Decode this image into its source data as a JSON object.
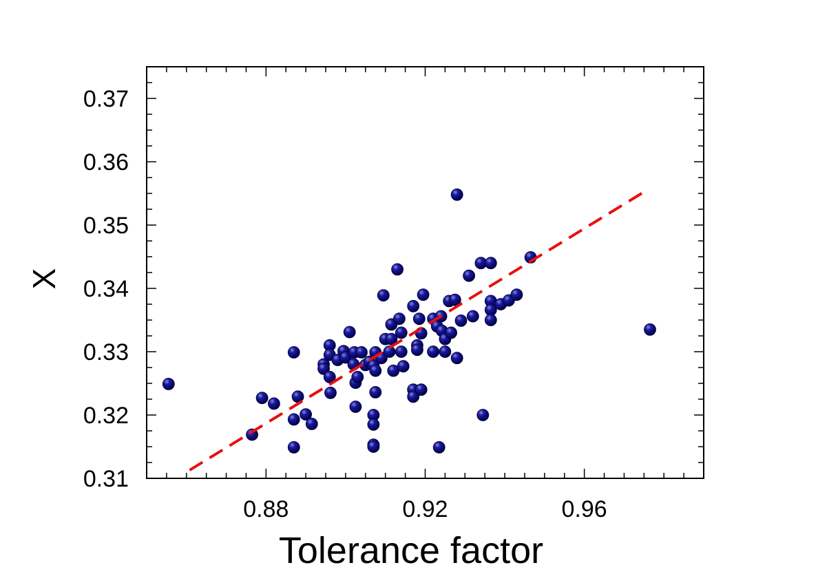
{
  "chart_data": {
    "type": "scatter",
    "xlabel": "Tolerance factor",
    "ylabel": "X",
    "xlim": [
      0.85,
      0.99
    ],
    "ylim": [
      0.31,
      0.375
    ],
    "x_ticks": [
      0.88,
      0.92,
      0.96
    ],
    "x_tick_labels": [
      "0.88",
      "0.92",
      "0.96"
    ],
    "y_ticks": [
      0.31,
      0.32,
      0.33,
      0.34,
      0.35,
      0.36,
      0.37
    ],
    "y_tick_labels": [
      "0.31",
      "0.32",
      "0.33",
      "0.34",
      "0.35",
      "0.36",
      "0.37"
    ],
    "grid": false,
    "marker_color": "#0a0a7a",
    "fit_color": "#e81010",
    "fit_line": {
      "x": [
        0.8608,
        0.9757
      ],
      "y": [
        0.3113,
        0.3555
      ]
    },
    "series": [
      {
        "points": [
          [
            0.8555,
            0.3249
          ],
          [
            0.8765,
            0.3169
          ],
          [
            0.879,
            0.3227
          ],
          [
            0.882,
            0.3218
          ],
          [
            0.887,
            0.3299
          ],
          [
            0.887,
            0.3193
          ],
          [
            0.887,
            0.3149
          ],
          [
            0.888,
            0.3229
          ],
          [
            0.89,
            0.3201
          ],
          [
            0.8915,
            0.3186
          ],
          [
            0.8945,
            0.328
          ],
          [
            0.8945,
            0.3273
          ],
          [
            0.896,
            0.331
          ],
          [
            0.896,
            0.3295
          ],
          [
            0.896,
            0.326
          ],
          [
            0.8962,
            0.3235
          ],
          [
            0.898,
            0.3287
          ],
          [
            0.8995,
            0.3301
          ],
          [
            0.9,
            0.3291
          ],
          [
            0.901,
            0.3331
          ],
          [
            0.902,
            0.328
          ],
          [
            0.9022,
            0.3299
          ],
          [
            0.9025,
            0.3251
          ],
          [
            0.9025,
            0.3213
          ],
          [
            0.903,
            0.326
          ],
          [
            0.904,
            0.3299
          ],
          [
            0.905,
            0.3279
          ],
          [
            0.906,
            0.3284
          ],
          [
            0.907,
            0.3278
          ],
          [
            0.907,
            0.32
          ],
          [
            0.907,
            0.3185
          ],
          [
            0.907,
            0.3153
          ],
          [
            0.907,
            0.315
          ],
          [
            0.9075,
            0.3299
          ],
          [
            0.9075,
            0.327
          ],
          [
            0.9075,
            0.3236
          ],
          [
            0.909,
            0.329
          ],
          [
            0.9095,
            0.3389
          ],
          [
            0.91,
            0.332
          ],
          [
            0.911,
            0.33
          ],
          [
            0.9115,
            0.3343
          ],
          [
            0.9115,
            0.332
          ],
          [
            0.912,
            0.327
          ],
          [
            0.913,
            0.343
          ],
          [
            0.9135,
            0.3352
          ],
          [
            0.914,
            0.333
          ],
          [
            0.914,
            0.33
          ],
          [
            0.9145,
            0.3277
          ],
          [
            0.917,
            0.3372
          ],
          [
            0.917,
            0.324
          ],
          [
            0.917,
            0.3229
          ],
          [
            0.918,
            0.331
          ],
          [
            0.918,
            0.3303
          ],
          [
            0.9185,
            0.3352
          ],
          [
            0.919,
            0.3329
          ],
          [
            0.919,
            0.324
          ],
          [
            0.9195,
            0.339
          ],
          [
            0.922,
            0.3352
          ],
          [
            0.922,
            0.33
          ],
          [
            0.923,
            0.334
          ],
          [
            0.9235,
            0.3149
          ],
          [
            0.924,
            0.3356
          ],
          [
            0.9242,
            0.3333
          ],
          [
            0.925,
            0.332
          ],
          [
            0.925,
            0.33
          ],
          [
            0.926,
            0.338
          ],
          [
            0.9265,
            0.333
          ],
          [
            0.9275,
            0.3382
          ],
          [
            0.928,
            0.3548
          ],
          [
            0.928,
            0.329
          ],
          [
            0.929,
            0.3349
          ],
          [
            0.931,
            0.342
          ],
          [
            0.932,
            0.3356
          ],
          [
            0.934,
            0.344
          ],
          [
            0.9345,
            0.32
          ],
          [
            0.9365,
            0.344
          ],
          [
            0.9365,
            0.338
          ],
          [
            0.9365,
            0.3366
          ],
          [
            0.9365,
            0.335
          ],
          [
            0.939,
            0.3375
          ],
          [
            0.941,
            0.3381
          ],
          [
            0.943,
            0.339
          ],
          [
            0.9465,
            0.3449
          ],
          [
            0.9765,
            0.3335
          ]
        ]
      }
    ]
  }
}
